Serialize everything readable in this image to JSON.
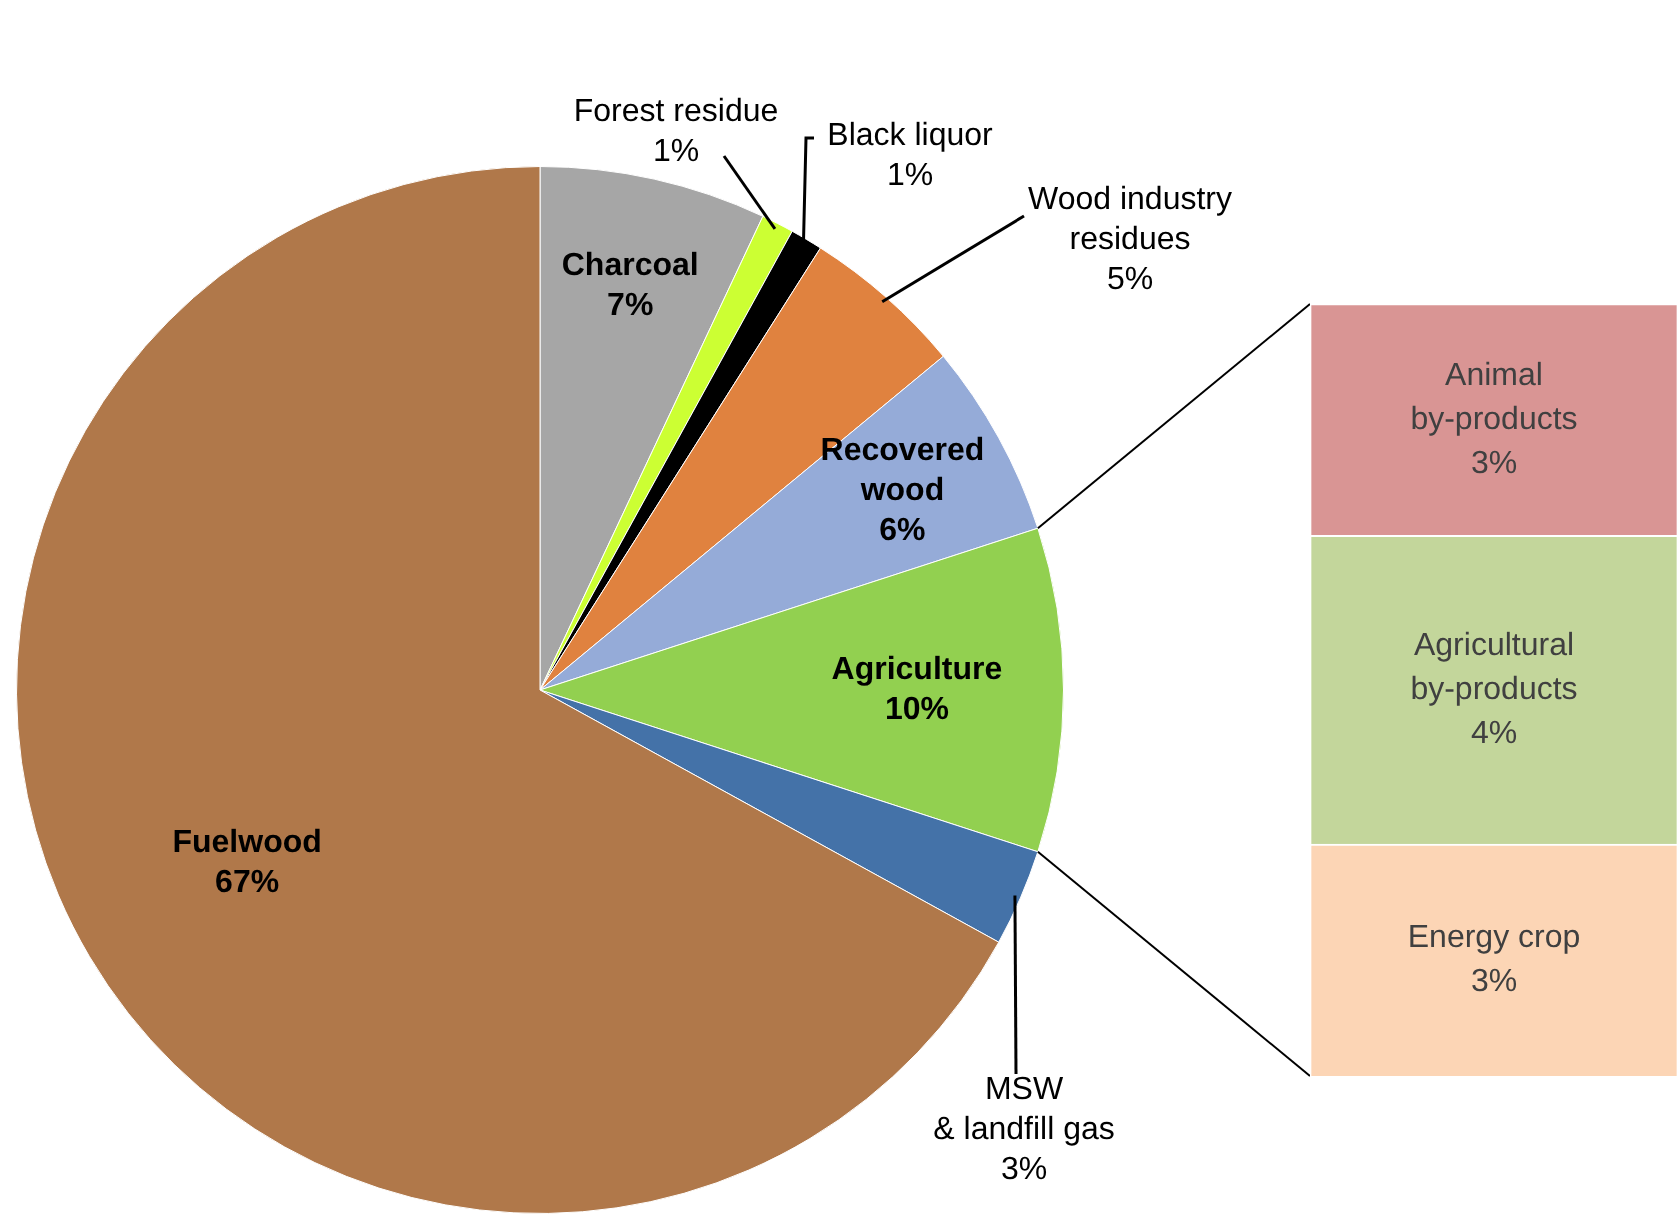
{
  "chart_data": [
    {
      "type": "pie",
      "categories": [
        "Charcoal",
        "Forest residue",
        "Black liquor",
        "Wood industry\nresidues",
        "Recovered\nwood",
        "Agriculture",
        "MSW\n& landfill gas",
        "Fuelwood"
      ],
      "values": [
        7,
        1,
        1,
        5,
        6,
        10,
        3,
        67
      ],
      "colors": [
        "#a6a6a6",
        "#ccff33",
        "#000000",
        "#e0823f",
        "#95abd8",
        "#92d050",
        "#4472a8",
        "#b0784a"
      ],
      "value_labels": [
        "7%",
        "1%",
        "1%",
        "5%",
        "6%",
        "10%",
        "3%",
        "67%"
      ]
    },
    {
      "type": "bar",
      "stacked": true,
      "categories": [
        null
      ],
      "series": [
        {
          "name": "Energy crop",
          "color": "#fcd5b5",
          "values": [
            3
          ],
          "value_labels": [
            "3%"
          ]
        },
        {
          "name": "Agricultural\nby-products",
          "color": "#c3d69b",
          "values": [
            4
          ],
          "value_labels": [
            "4%"
          ]
        },
        {
          "name": "Animal\nby-products",
          "color": "#d99594",
          "values": [
            3
          ],
          "value_labels": [
            "3%"
          ]
        }
      ]
    }
  ]
}
